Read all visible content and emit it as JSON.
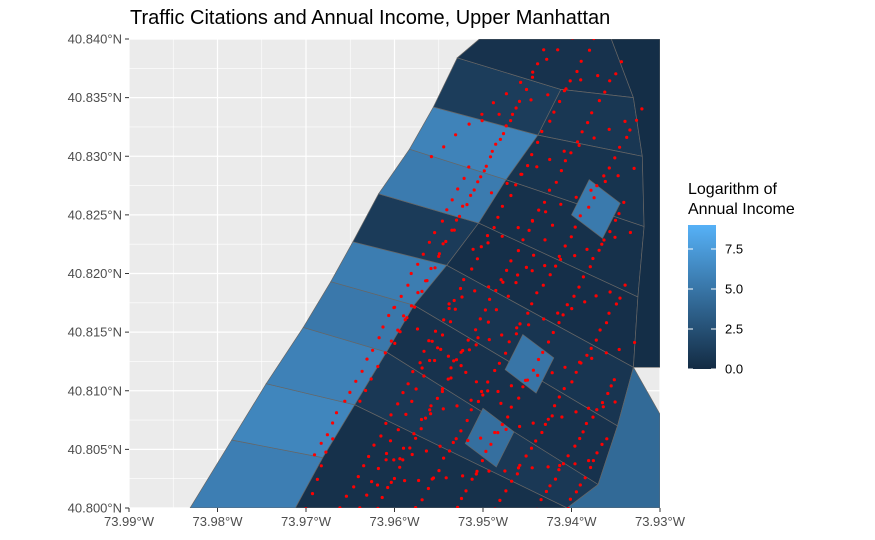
{
  "chart_data": {
    "type": "map",
    "title": "Traffic Citations and Annual Income, Upper Manhattan",
    "xlabel": "",
    "ylabel": "",
    "xlim": [
      -73.99,
      -73.93
    ],
    "ylim": [
      40.8,
      40.84
    ],
    "x_ticks": [
      -73.99,
      -73.98,
      -73.97,
      -73.96,
      -73.95,
      -73.94,
      -73.93
    ],
    "x_tick_labels": [
      "73.99°W",
      "73.98°W",
      "73.97°W",
      "73.96°W",
      "73.95°W",
      "73.94°W",
      "73.93°W"
    ],
    "y_ticks": [
      40.8,
      40.805,
      40.81,
      40.815,
      40.82,
      40.825,
      40.83,
      40.835,
      40.84
    ],
    "y_tick_labels": [
      "40.800°N",
      "40.805°N",
      "40.810°N",
      "40.815°N",
      "40.820°N",
      "40.825°N",
      "40.830°N",
      "40.835°N",
      "40.840°N"
    ],
    "grid": true,
    "legend": {
      "title_lines": [
        "Logarithm of",
        "Annual Income"
      ],
      "placement": "right",
      "range": [
        0,
        9
      ],
      "breaks": [
        0,
        2.5,
        5,
        7.5
      ],
      "break_labels": [
        "0.0",
        "2.5",
        "5.0",
        "7.5"
      ],
      "low_color": "#132B43",
      "high_color": "#56B1F7"
    },
    "colors": {
      "panel_background": "#EBEBEB",
      "grid_line": "#FFFFFF",
      "tract_border": "#666666",
      "citation_point": "#FF0000"
    },
    "tracts": [
      {
        "value": 5.6,
        "coords": [
          [
            -73.9831,
            40.8
          ],
          [
            -73.9712,
            40.8
          ],
          [
            -73.9681,
            40.8043
          ],
          [
            -73.9784,
            40.8058
          ]
        ]
      },
      {
        "value": 6.1,
        "coords": [
          [
            -73.9784,
            40.8058
          ],
          [
            -73.9681,
            40.8043
          ],
          [
            -73.9645,
            40.8088
          ],
          [
            -73.9745,
            40.8106
          ]
        ]
      },
      {
        "value": 5.8,
        "coords": [
          [
            -73.9745,
            40.8106
          ],
          [
            -73.9645,
            40.8088
          ],
          [
            -73.9609,
            40.8133
          ],
          [
            -73.9703,
            40.8154
          ]
        ]
      },
      {
        "value": 5.2,
        "coords": [
          [
            -73.9703,
            40.8154
          ],
          [
            -73.9609,
            40.8133
          ],
          [
            -73.9578,
            40.8173
          ],
          [
            -73.9672,
            40.8193
          ]
        ]
      },
      {
        "value": 5.5,
        "coords": [
          [
            -73.9672,
            40.8193
          ],
          [
            -73.9578,
            40.8173
          ],
          [
            -73.9541,
            40.8207
          ],
          [
            -73.9647,
            40.8227
          ]
        ]
      },
      {
        "value": 1.1,
        "coords": [
          [
            -73.9647,
            40.8227
          ],
          [
            -73.9541,
            40.8207
          ],
          [
            -73.9505,
            40.8243
          ],
          [
            -73.9618,
            40.8268
          ]
        ]
      },
      {
        "value": 5.4,
        "coords": [
          [
            -73.9618,
            40.8268
          ],
          [
            -73.9505,
            40.8243
          ],
          [
            -73.9474,
            40.828
          ],
          [
            -73.9583,
            40.8306
          ]
        ]
      },
      {
        "value": 5.9,
        "coords": [
          [
            -73.9583,
            40.8306
          ],
          [
            -73.9474,
            40.828
          ],
          [
            -73.9438,
            40.8318
          ],
          [
            -73.9556,
            40.8342
          ]
        ]
      },
      {
        "value": 1.2,
        "coords": [
          [
            -73.9556,
            40.8342
          ],
          [
            -73.9438,
            40.8318
          ],
          [
            -73.9412,
            40.8357
          ],
          [
            -73.9529,
            40.8384
          ]
        ]
      },
      {
        "value": 5.6,
        "coords": [
          [
            -73.9529,
            40.8384
          ],
          [
            -73.9412,
            40.8357
          ],
          [
            -73.9402,
            40.84
          ],
          [
            -73.9504,
            40.84
          ]
        ]
      },
      {
        "value": 0.5,
        "coords": [
          [
            -73.9504,
            40.84
          ],
          [
            -73.9355,
            40.84
          ],
          [
            -73.933,
            40.835
          ],
          [
            -73.9412,
            40.8357
          ],
          [
            -73.9529,
            40.8384
          ]
        ]
      },
      {
        "value": 0.8,
        "coords": [
          [
            -73.9412,
            40.8357
          ],
          [
            -73.933,
            40.835
          ],
          [
            -73.932,
            40.83
          ],
          [
            -73.9438,
            40.8318
          ]
        ]
      },
      {
        "value": 0.6,
        "coords": [
          [
            -73.9438,
            40.8318
          ],
          [
            -73.932,
            40.83
          ],
          [
            -73.9318,
            40.824
          ],
          [
            -73.9474,
            40.828
          ]
        ]
      },
      {
        "value": 0.4,
        "coords": [
          [
            -73.9474,
            40.828
          ],
          [
            -73.9318,
            40.824
          ],
          [
            -73.9325,
            40.818
          ],
          [
            -73.9505,
            40.8243
          ]
        ]
      },
      {
        "value": 0.3,
        "coords": [
          [
            -73.9505,
            40.8243
          ],
          [
            -73.9325,
            40.818
          ],
          [
            -73.933,
            40.812
          ],
          [
            -73.9541,
            40.8207
          ]
        ]
      },
      {
        "value": 0.7,
        "coords": [
          [
            -73.9541,
            40.8207
          ],
          [
            -73.933,
            40.812
          ],
          [
            -73.9348,
            40.807
          ],
          [
            -73.9578,
            40.8173
          ]
        ]
      },
      {
        "value": 0.5,
        "coords": [
          [
            -73.9578,
            40.8173
          ],
          [
            -73.9348,
            40.807
          ],
          [
            -73.937,
            40.802
          ],
          [
            -73.9609,
            40.8133
          ]
        ]
      },
      {
        "value": 0.9,
        "coords": [
          [
            -73.9609,
            40.8133
          ],
          [
            -73.937,
            40.802
          ],
          [
            -73.9405,
            40.8
          ],
          [
            -73.9645,
            40.8088
          ]
        ]
      },
      {
        "value": 0.4,
        "coords": [
          [
            -73.9645,
            40.8088
          ],
          [
            -73.9405,
            40.8
          ],
          [
            -73.9712,
            40.8
          ],
          [
            -73.9681,
            40.8043
          ]
        ]
      },
      {
        "value": 4.2,
        "coords": [
          [
            -73.933,
            40.812
          ],
          [
            -73.93,
            40.808
          ],
          [
            -73.93,
            40.8
          ],
          [
            -73.9405,
            40.8
          ],
          [
            -73.937,
            40.802
          ],
          [
            -73.9348,
            40.807
          ]
        ]
      },
      {
        "value": 0.2,
        "coords": [
          [
            -73.9355,
            40.84
          ],
          [
            -73.93,
            40.84
          ],
          [
            -73.93,
            40.812
          ],
          [
            -73.933,
            40.812
          ],
          [
            -73.9325,
            40.818
          ],
          [
            -73.9318,
            40.824
          ],
          [
            -73.932,
            40.83
          ],
          [
            -73.933,
            40.835
          ]
        ]
      },
      {
        "value": 5.0,
        "coords": [
          [
            -73.9475,
            40.8118
          ],
          [
            -73.944,
            40.8098
          ],
          [
            -73.942,
            40.8128
          ],
          [
            -73.9455,
            40.8148
          ]
        ]
      },
      {
        "value": 4.6,
        "coords": [
          [
            -73.952,
            40.8055
          ],
          [
            -73.9485,
            40.8035
          ],
          [
            -73.9465,
            40.8065
          ],
          [
            -73.95,
            40.8085
          ]
        ]
      },
      {
        "value": 5.3,
        "coords": [
          [
            -73.94,
            40.825
          ],
          [
            -73.9365,
            40.823
          ],
          [
            -73.9345,
            40.826
          ],
          [
            -73.938,
            40.828
          ]
        ]
      }
    ],
    "citation_tracks": [
      {
        "start": [
          -73.966,
          40.8
        ],
        "end": [
          -73.9375,
          40.84
        ],
        "n": 46
      },
      {
        "start": [
          -73.962,
          40.8
        ],
        "end": [
          -73.9345,
          40.838
        ],
        "n": 46
      },
      {
        "start": [
          -73.9575,
          40.8
        ],
        "end": [
          -73.932,
          40.834
        ],
        "n": 42
      },
      {
        "start": [
          -73.953,
          40.8
        ],
        "end": [
          -73.934,
          40.826
        ],
        "n": 34
      },
      {
        "start": [
          -73.9485,
          40.8
        ],
        "end": [
          -73.9345,
          40.818
        ],
        "n": 26
      },
      {
        "start": [
          -73.944,
          40.8
        ],
        "end": [
          -73.935,
          40.811
        ],
        "n": 18
      },
      {
        "start": [
          -73.9405,
          40.8
        ],
        "end": [
          -73.936,
          40.806
        ],
        "n": 10
      },
      {
        "start": [
          -73.969,
          40.8045
        ],
        "end": [
          -73.9515,
          40.829
        ],
        "n": 28
      },
      {
        "start": [
          -73.964,
          40.809
        ],
        "end": [
          -73.947,
          40.833
        ],
        "n": 24
      },
      {
        "start": [
          -73.96,
          40.814
        ],
        "end": [
          -73.943,
          40.839
        ],
        "n": 24
      },
      {
        "start": [
          -73.956,
          40.83
        ],
        "end": [
          -73.94,
          40.84
        ],
        "n": 12
      },
      {
        "start": [
          -73.97,
          40.8
        ],
        "end": [
          -73.967,
          40.806
        ],
        "n": 6
      },
      {
        "start": [
          -73.964,
          40.8
        ],
        "end": [
          -73.953,
          40.817
        ],
        "n": 16
      },
      {
        "start": [
          -73.96,
          40.804
        ],
        "end": [
          -73.942,
          40.824
        ],
        "n": 18
      },
      {
        "start": [
          -73.956,
          40.808
        ],
        "end": [
          -73.933,
          40.814
        ],
        "n": 16
      },
      {
        "start": [
          -73.961,
          40.804
        ],
        "end": [
          -73.935,
          40.809
        ],
        "n": 18
      },
      {
        "start": [
          -73.962,
          40.802
        ],
        "end": [
          -73.938,
          40.804
        ],
        "n": 16
      },
      {
        "start": [
          -73.957,
          40.812
        ],
        "end": [
          -73.934,
          40.819
        ],
        "n": 16
      },
      {
        "start": [
          -73.954,
          40.8175
        ],
        "end": [
          -73.9335,
          40.8235
        ],
        "n": 14
      },
      {
        "start": [
          -73.951,
          40.822
        ],
        "end": [
          -73.933,
          40.829
        ],
        "n": 12
      },
      {
        "start": [
          -73.949,
          40.827
        ],
        "end": [
          -73.934,
          40.833
        ],
        "n": 10
      },
      {
        "start": [
          -73.95,
          40.833
        ],
        "end": [
          -73.937,
          40.837
        ],
        "n": 8
      },
      {
        "start": [
          -73.96,
          40.817
        ],
        "end": [
          -73.948,
          40.809
        ],
        "n": 10
      },
      {
        "start": [
          -73.928,
          40.8178
        ],
        "end": [
          -73.9272,
          40.8178
        ],
        "n": 2
      }
    ]
  }
}
